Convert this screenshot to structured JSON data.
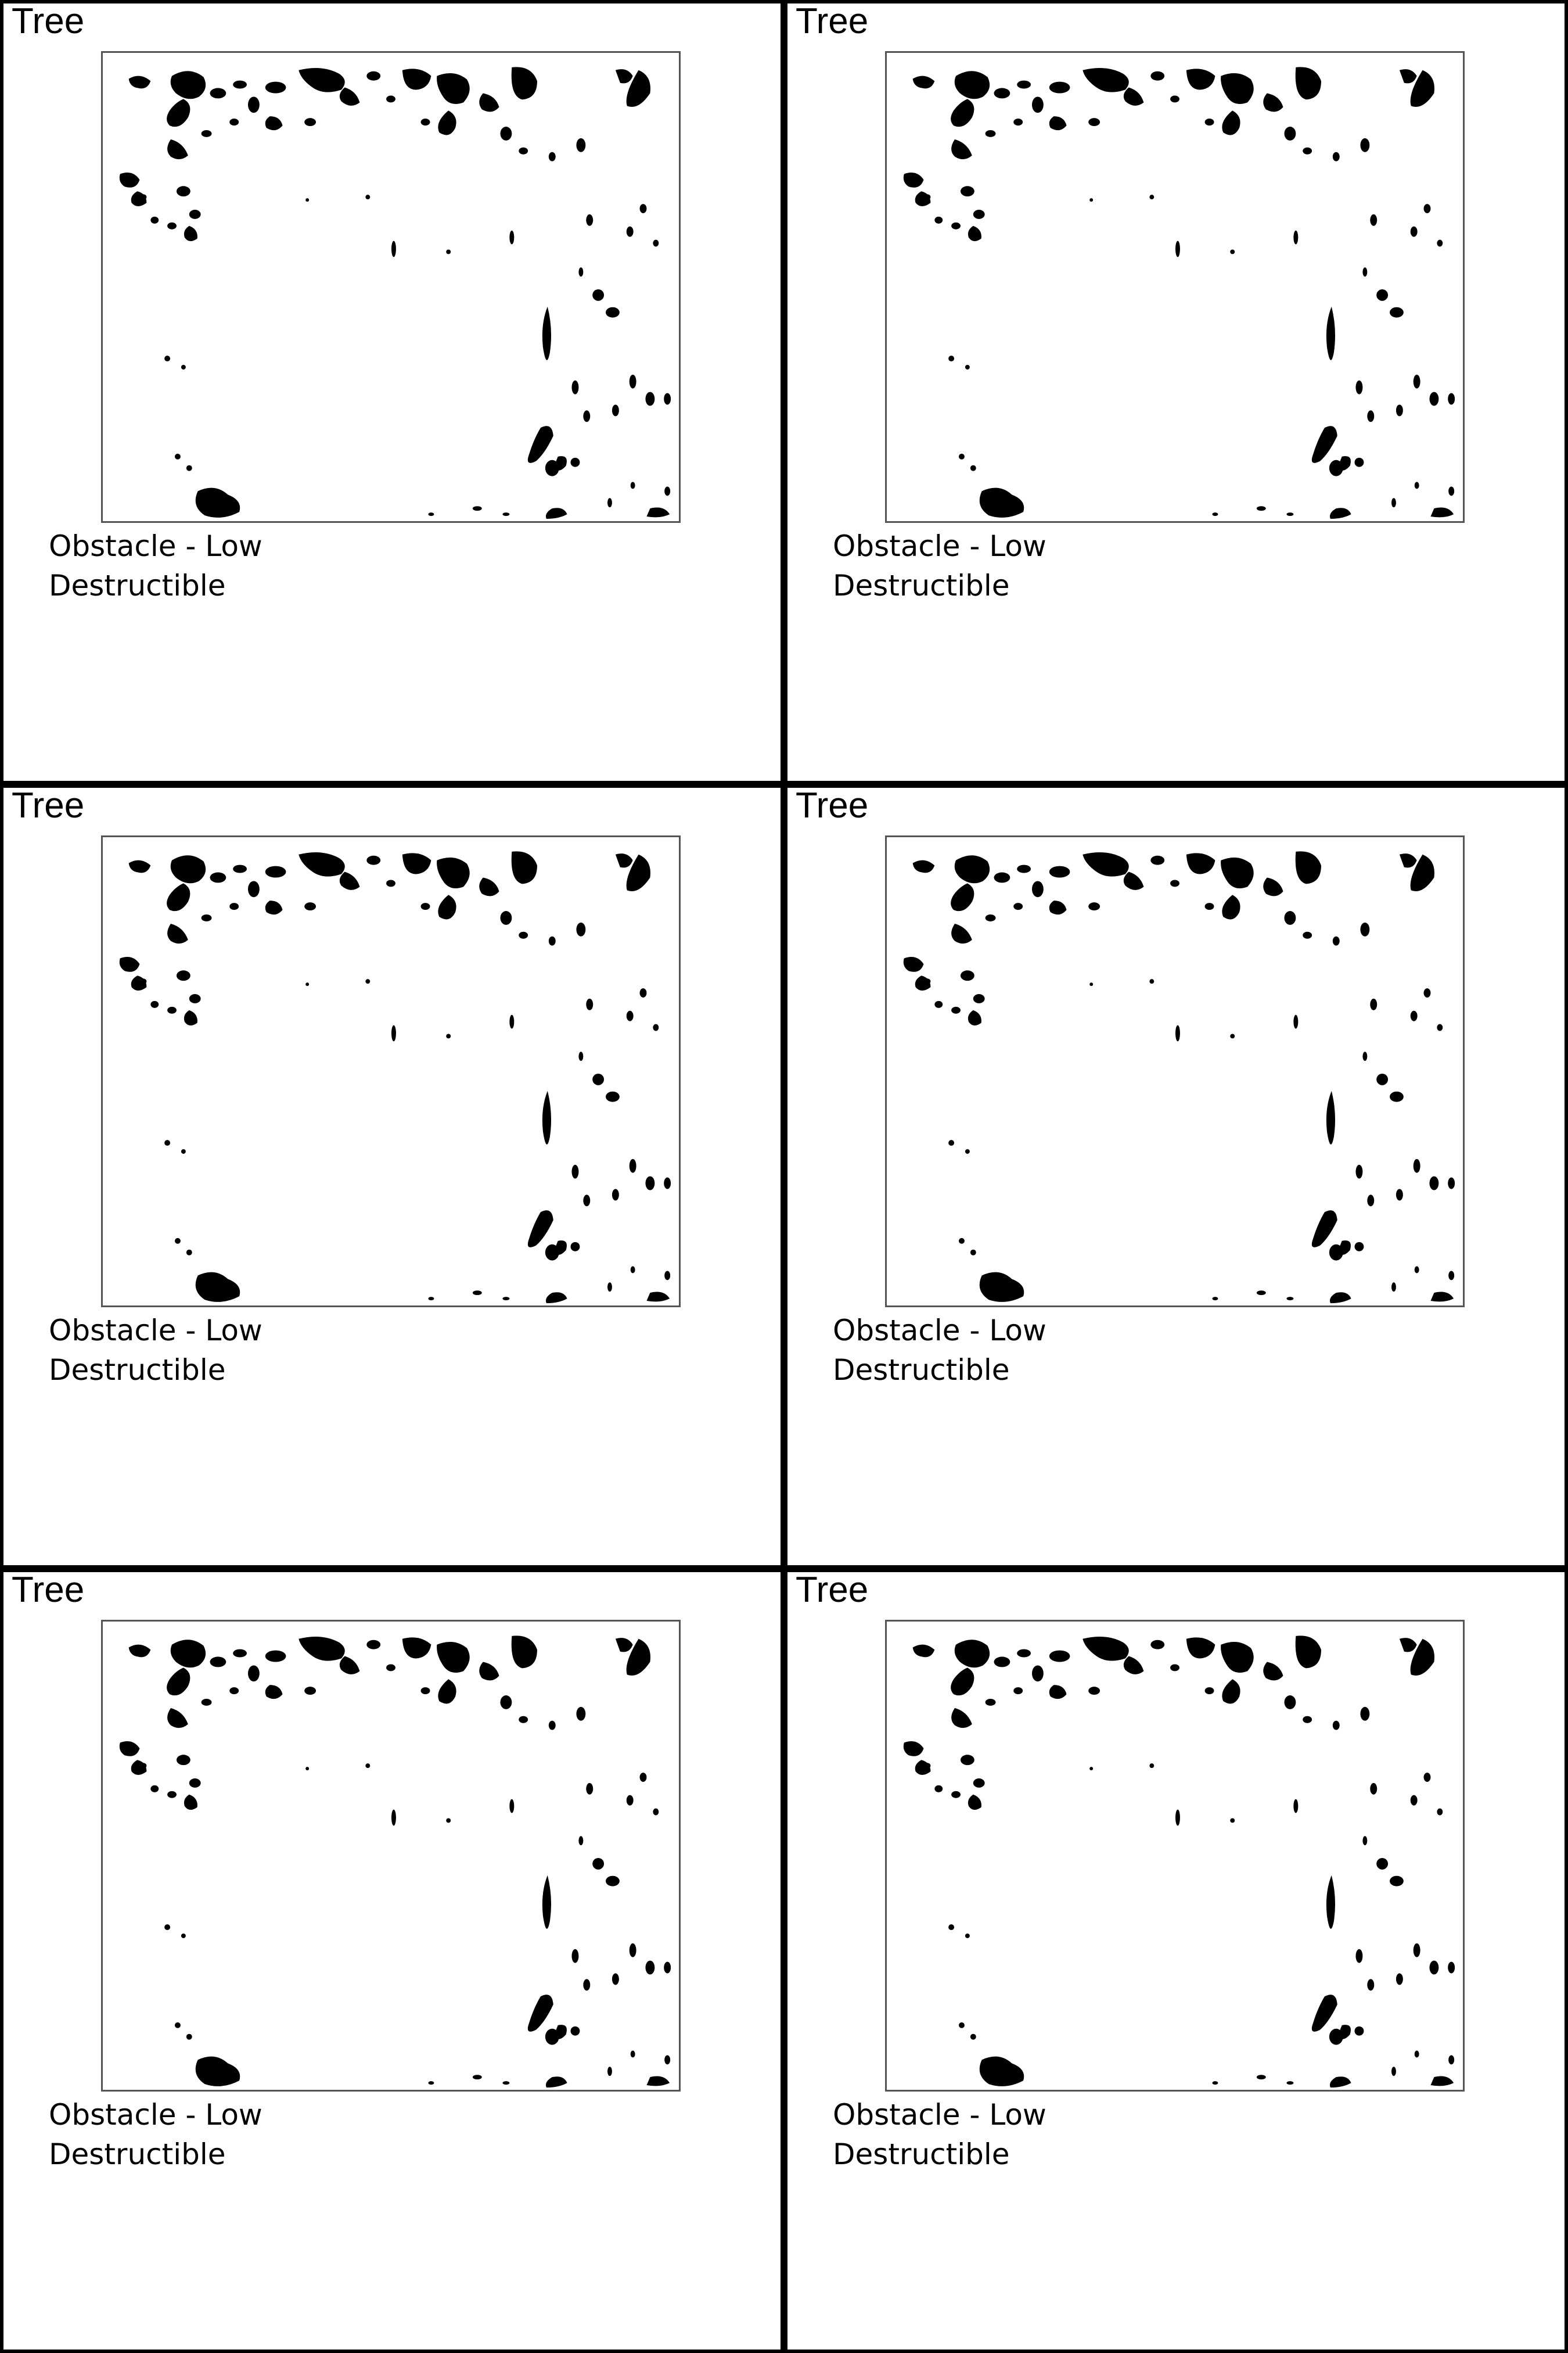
{
  "page": {
    "background": "#ffffff",
    "border_color": "#000000"
  },
  "tiles": [
    {
      "name": "Tree",
      "tags": [
        "Obstacle - Low",
        "Destructible"
      ]
    },
    {
      "name": "Tree",
      "tags": [
        "Obstacle - Low",
        "Destructible"
      ]
    },
    {
      "name": "Tree",
      "tags": [
        "Obstacle - Low",
        "Destructible"
      ]
    },
    {
      "name": "Tree",
      "tags": [
        "Obstacle - Low",
        "Destructible"
      ]
    },
    {
      "name": "Tree",
      "tags": [
        "Obstacle - Low",
        "Destructible"
      ]
    },
    {
      "name": "Tree",
      "tags": [
        "Obstacle - Low",
        "Destructible"
      ]
    }
  ]
}
